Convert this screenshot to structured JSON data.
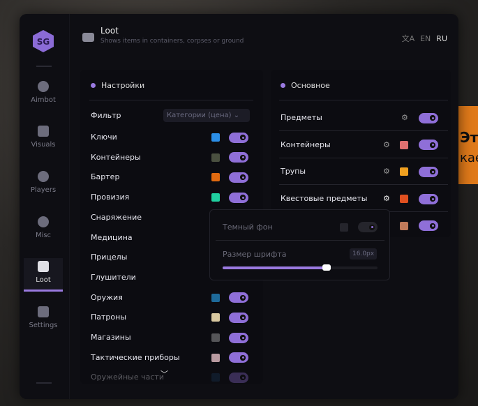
{
  "background": {
    "text_lines": [
      "Эт",
      "кае"
    ]
  },
  "sidebar": {
    "logo": "SG",
    "items": [
      {
        "label": "Aimbot",
        "icon": "alien-icon"
      },
      {
        "label": "Visuals",
        "icon": "vr-headset-icon"
      },
      {
        "label": "Players",
        "icon": "users-icon"
      },
      {
        "label": "Misc",
        "icon": "dots-icon"
      },
      {
        "label": "Loot",
        "icon": "briefcase-icon",
        "active": true
      },
      {
        "label": "Settings",
        "icon": "list-icon"
      }
    ]
  },
  "header": {
    "title": "Loot",
    "subtitle": "Shows items in containers, corpses or ground",
    "languages": [
      "EN",
      "RU"
    ],
    "active_language": "RU"
  },
  "settings": {
    "title": "Настройки",
    "filter_label": "Фильтр",
    "filter_value": "Категории (цена)",
    "items": [
      {
        "label": "Ключи",
        "color": "#2b8fe8",
        "on": true
      },
      {
        "label": "Контейнеры",
        "color": "#4a5040",
        "on": true
      },
      {
        "label": "Бартер",
        "color": "#e06a10",
        "on": true
      },
      {
        "label": "Провизия",
        "color": "#20d0a0",
        "on": true
      },
      {
        "label": "Снаряжение"
      },
      {
        "label": "Медицина"
      },
      {
        "label": "Прицелы"
      },
      {
        "label": "Глушители"
      },
      {
        "label": "Оружия",
        "color": "#1e6a9a",
        "on": true
      },
      {
        "label": "Патроны",
        "color": "#d8c8a0",
        "on": true
      },
      {
        "label": "Магазины",
        "color": "#555558",
        "on": true
      },
      {
        "label": "Тактические приборы",
        "color": "#b89aa0",
        "on": true
      },
      {
        "label": "Оружейные части",
        "color": "#1a3a5a",
        "on": true
      }
    ]
  },
  "main": {
    "title": "Основное",
    "items": [
      {
        "label": "Предметы",
        "on": true
      },
      {
        "label": "Контейнеры",
        "color": "#e07070",
        "on": true
      },
      {
        "label": "Трупы",
        "color": "#f0a020",
        "on": true
      },
      {
        "label": "Квестовые предметы",
        "color": "#e05020",
        "on": true
      },
      {
        "label": "",
        "color": "#c07a5a",
        "on": true
      }
    ]
  },
  "popup": {
    "dark_bg_label": "Темный фон",
    "dark_bg_on": false,
    "font_size_label": "Размер шрифта",
    "font_size_value": "16.0px",
    "font_size_fraction": 0.67
  },
  "colors": {
    "accent": "#9a7ae0"
  }
}
